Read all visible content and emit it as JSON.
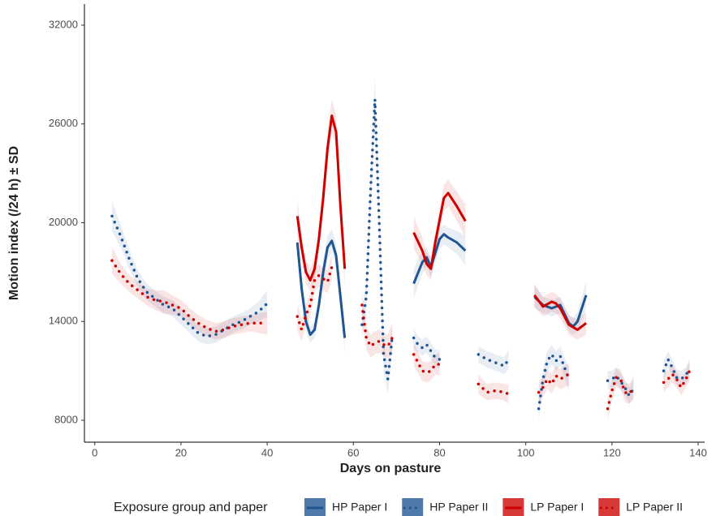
{
  "chart_data": {
    "type": "line",
    "ylabel": "Motion index (/24 h) ± SD",
    "xlabel": "Days on pasture",
    "legend_title": "Exposure group and paper",
    "legend": "bottom",
    "xlim": [
      -2.4,
      141.5
    ],
    "ylim": [
      6670,
      33280
    ],
    "xticks": [
      0,
      20,
      40,
      60,
      80,
      100,
      120,
      140
    ],
    "yticks": [
      8000,
      14000,
      20000,
      26000,
      32000
    ],
    "grid": false,
    "series": [
      {
        "name": "HP Paper I",
        "color": "#1f5591",
        "linestyle": "solid",
        "x": [
          47,
          48,
          49,
          50,
          51,
          52,
          53,
          54,
          55,
          56,
          57,
          58,
          null,
          74,
          76,
          77,
          78,
          80,
          81,
          82,
          84,
          86,
          null,
          102,
          104,
          106,
          108,
          110,
          111,
          112,
          114
        ],
        "values": [
          18800,
          16000,
          14000,
          13200,
          13500,
          15000,
          17000,
          18500,
          18900,
          18000,
          15500,
          13000,
          null,
          16300,
          17600,
          17900,
          17300,
          19000,
          19300,
          19100,
          18800,
          18300,
          null,
          15500,
          15000,
          14800,
          15000,
          13900,
          13700,
          14000,
          15600
        ],
        "sd": [
          900,
          700,
          600,
          500,
          500,
          600,
          700,
          700,
          700,
          700,
          700,
          800,
          null,
          900,
          700,
          600,
          600,
          600,
          600,
          600,
          700,
          900,
          null,
          700,
          500,
          500,
          500,
          500,
          500,
          600,
          800
        ]
      },
      {
        "name": "HP Paper II",
        "color": "#1f5591",
        "linestyle": "dotted",
        "x": [
          4,
          6,
          8,
          10,
          12,
          14,
          16,
          18,
          20,
          22,
          24,
          26,
          28,
          30,
          32,
          34,
          36,
          38,
          40,
          null,
          62,
          63,
          64,
          65,
          66,
          67,
          68,
          69,
          null,
          74,
          75,
          76,
          77,
          78,
          79,
          80,
          null,
          89,
          91,
          93,
          95,
          96,
          null,
          103,
          104,
          105,
          106,
          107,
          108,
          110,
          null,
          119,
          120,
          121,
          123,
          124,
          125,
          null,
          132,
          133,
          134,
          135,
          136,
          137,
          138
        ],
        "values": [
          20400,
          19200,
          17800,
          16600,
          15800,
          15400,
          15000,
          14800,
          14300,
          13800,
          13300,
          13100,
          13200,
          13500,
          13800,
          14000,
          14300,
          14600,
          15100,
          null,
          13800,
          15500,
          22000,
          27500,
          20000,
          12000,
          10500,
          13000,
          null,
          13000,
          12600,
          12400,
          12600,
          12200,
          11800,
          11700,
          null,
          12000,
          11700,
          11500,
          11300,
          11700,
          null,
          8700,
          10500,
          11600,
          12000,
          11600,
          11900,
          10500,
          null,
          10400,
          10500,
          10700,
          10000,
          9500,
          9900,
          null,
          11000,
          11700,
          11200,
          10600,
          10500,
          10700,
          11100
        ],
        "sd": [
          900,
          700,
          600,
          500,
          500,
          500,
          500,
          500,
          500,
          500,
          500,
          500,
          500,
          500,
          500,
          500,
          500,
          600,
          800,
          null,
          900,
          1000,
          1200,
          1300,
          1200,
          1000,
          900,
          900,
          null,
          600,
          500,
          500,
          500,
          500,
          500,
          600,
          null,
          500,
          500,
          500,
          500,
          600,
          null,
          700,
          600,
          600,
          600,
          600,
          600,
          700,
          null,
          600,
          500,
          500,
          500,
          500,
          600,
          null,
          600,
          500,
          500,
          500,
          500,
          500,
          600
        ]
      },
      {
        "name": "LP Paper I",
        "color": "#cc0000",
        "linestyle": "solid",
        "x": [
          47,
          48,
          49,
          50,
          51,
          52,
          53,
          54,
          55,
          56,
          57,
          58,
          null,
          74,
          76,
          77,
          78,
          79,
          81,
          82,
          84,
          86,
          null,
          102,
          104,
          106,
          107,
          108,
          110,
          112,
          114
        ],
        "values": [
          20400,
          18500,
          17000,
          16500,
          17200,
          19000,
          21500,
          24500,
          26500,
          25500,
          21000,
          17200,
          null,
          19400,
          18300,
          17500,
          17200,
          18800,
          21500,
          21800,
          21000,
          20100,
          null,
          15600,
          14900,
          15200,
          15100,
          14800,
          13800,
          13500,
          13900
        ],
        "sd": [
          1000,
          800,
          700,
          700,
          700,
          800,
          900,
          1000,
          1000,
          1000,
          1000,
          1100,
          null,
          1000,
          800,
          700,
          700,
          700,
          800,
          800,
          900,
          1000,
          null,
          700,
          600,
          600,
          600,
          600,
          600,
          600,
          700
        ]
      },
      {
        "name": "LP Paper II",
        "color": "#cc0000",
        "linestyle": "dotted",
        "x": [
          4,
          6,
          8,
          10,
          12,
          14,
          16,
          18,
          20,
          22,
          24,
          26,
          28,
          30,
          32,
          34,
          36,
          38,
          40,
          null,
          47,
          48,
          49,
          50,
          51,
          52,
          54,
          55,
          null,
          62,
          63,
          64,
          65,
          66,
          67,
          68,
          69,
          null,
          74,
          76,
          77,
          78,
          79,
          80,
          null,
          89,
          91,
          93,
          95,
          96,
          null,
          103,
          104,
          105,
          106,
          107,
          108,
          110,
          null,
          119,
          120,
          121,
          122,
          123,
          124,
          125,
          null,
          132,
          133,
          134,
          135,
          136,
          137,
          138
        ],
        "values": [
          17700,
          16900,
          16300,
          15900,
          15500,
          15300,
          15200,
          15000,
          14800,
          14300,
          13900,
          13600,
          13400,
          13500,
          13700,
          13800,
          13900,
          13900,
          13900,
          null,
          14300,
          13500,
          14400,
          15000,
          16500,
          16800,
          16400,
          17300,
          null,
          15000,
          13000,
          12500,
          12700,
          12800,
          12600,
          12500,
          13000,
          null,
          12000,
          11000,
          10900,
          11000,
          11400,
          11400,
          null,
          10200,
          9700,
          9800,
          9700,
          9600,
          null,
          9700,
          10000,
          10500,
          10200,
          10700,
          10500,
          10800,
          null,
          8700,
          9800,
          10600,
          10500,
          9700,
          9600,
          10000,
          null,
          10300,
          10500,
          10800,
          10500,
          10000,
          10400,
          11000
        ],
        "sd": [
          800,
          600,
          500,
          500,
          500,
          600,
          700,
          600,
          500,
          500,
          500,
          500,
          500,
          500,
          500,
          500,
          500,
          600,
          700,
          null,
          800,
          700,
          700,
          700,
          700,
          700,
          700,
          800,
          null,
          900,
          700,
          700,
          700,
          700,
          700,
          700,
          900,
          null,
          700,
          600,
          600,
          600,
          600,
          700,
          null,
          600,
          500,
          500,
          500,
          600,
          null,
          700,
          600,
          600,
          600,
          600,
          600,
          700,
          null,
          700,
          600,
          600,
          600,
          600,
          600,
          700,
          null,
          600,
          500,
          500,
          500,
          500,
          500,
          600
        ]
      }
    ]
  }
}
